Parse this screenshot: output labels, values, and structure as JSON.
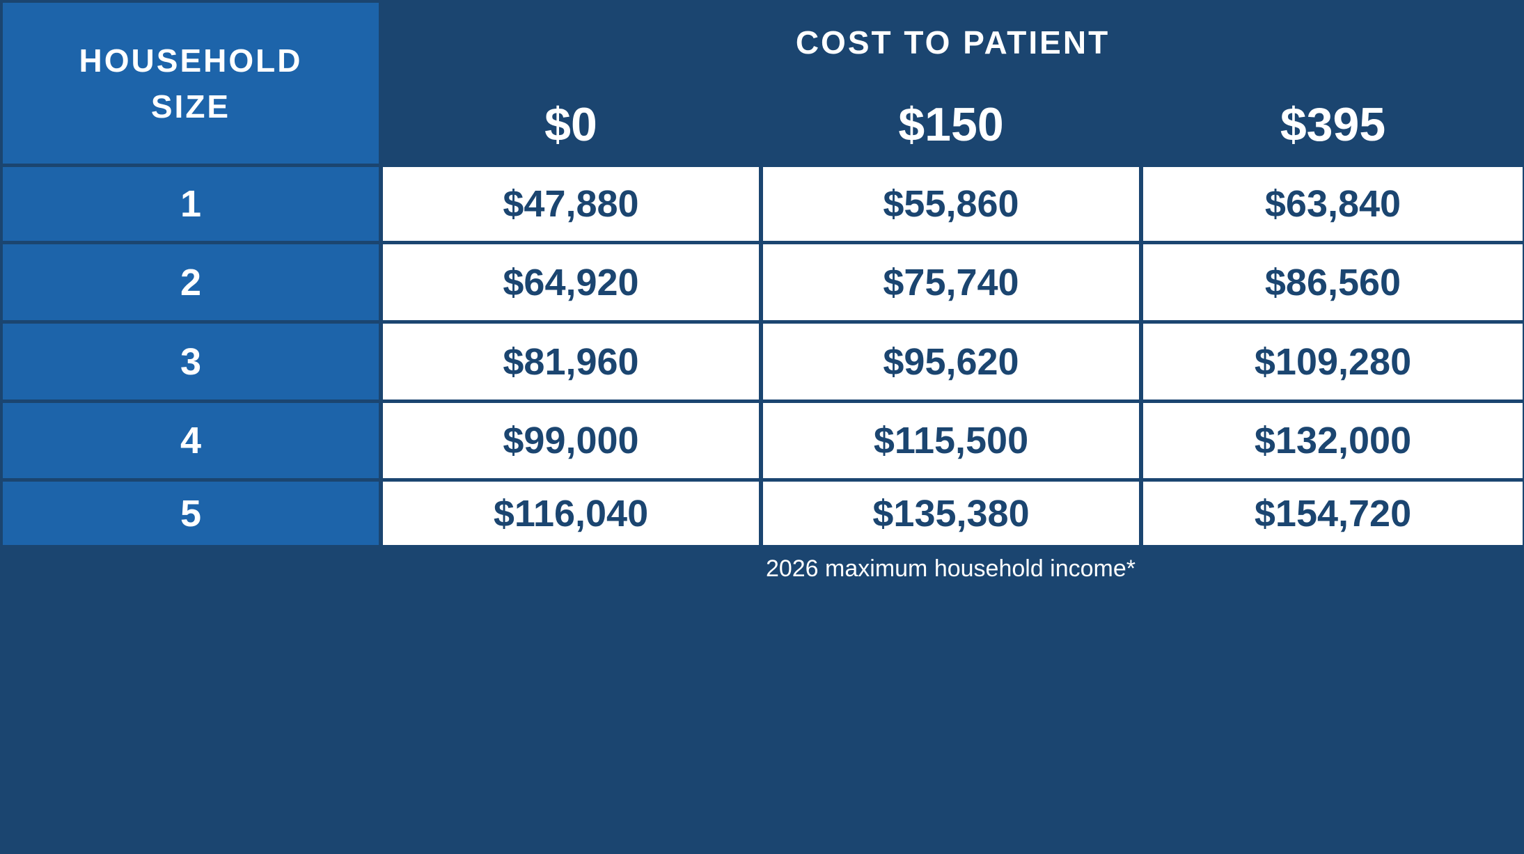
{
  "table": {
    "household_header": "HOUSEHOLD SIZE",
    "cost_header": "COST TO PATIENT",
    "tiers": [
      "$0",
      "$150",
      "$395"
    ],
    "rows": [
      {
        "size": "1",
        "values": [
          "$47,880",
          "$55,860",
          "$63,840"
        ]
      },
      {
        "size": "2",
        "values": [
          "$64,920",
          "$75,740",
          "$86,560"
        ]
      },
      {
        "size": "3",
        "values": [
          "$81,960",
          "$95,620",
          "$109,280"
        ]
      },
      {
        "size": "4",
        "values": [
          "$99,000",
          "$115,500",
          "$132,000"
        ]
      },
      {
        "size": "5",
        "values": [
          "$116,040",
          "$135,380",
          "$154,720"
        ]
      }
    ],
    "footnote": "2026 maximum household income*"
  },
  "colors": {
    "navy": "#1b4570",
    "blue": "#1d64aa",
    "white": "#ffffff"
  }
}
